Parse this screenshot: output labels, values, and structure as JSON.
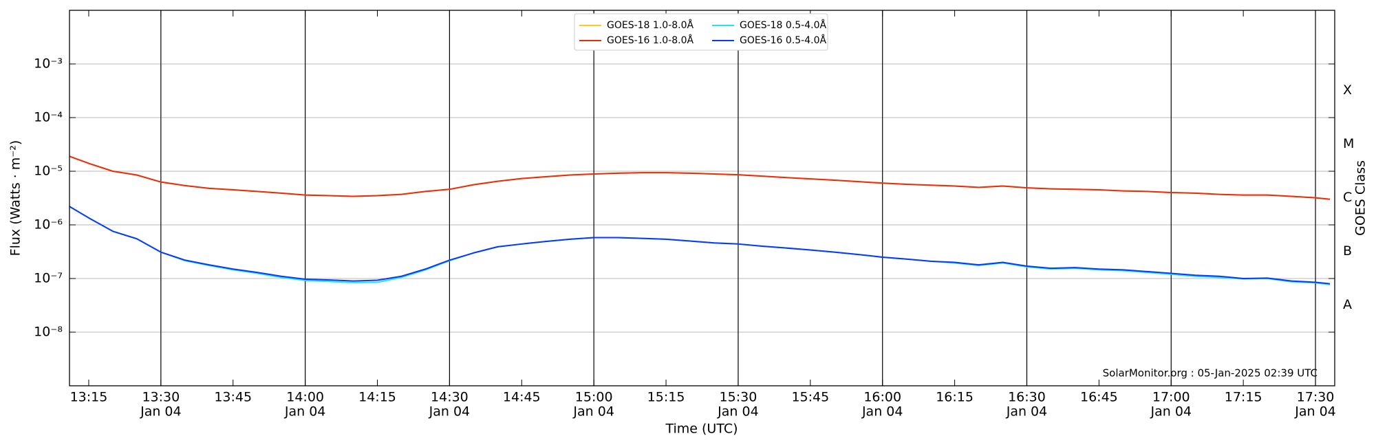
{
  "chart_data": {
    "type": "line",
    "xlabel": "Time (UTC)",
    "ylabel": "Flux (Watts · m⁻²)",
    "y2label": "GOES Class",
    "watermark": "SolarMonitor.org : 05-Jan-2025 02:39 UTC",
    "yscale": "log",
    "grid": true,
    "legend": "upper center",
    "x": [
      "13:11",
      "13:15",
      "13:20",
      "13:25",
      "13:30",
      "13:35",
      "13:40",
      "13:45",
      "13:50",
      "13:55",
      "14:00",
      "14:05",
      "14:10",
      "14:15",
      "14:20",
      "14:25",
      "14:30",
      "14:35",
      "14:40",
      "14:45",
      "14:50",
      "14:55",
      "15:00",
      "15:05",
      "15:10",
      "15:15",
      "15:20",
      "15:25",
      "15:30",
      "15:35",
      "15:40",
      "15:45",
      "15:50",
      "15:55",
      "16:00",
      "16:05",
      "16:10",
      "16:15",
      "16:20",
      "16:25",
      "16:30",
      "16:35",
      "16:40",
      "16:45",
      "16:50",
      "16:55",
      "17:00",
      "17:05",
      "17:10",
      "17:15",
      "17:20",
      "17:25",
      "17:30",
      "17:33"
    ],
    "xlim": [
      "13:11",
      "17:34"
    ],
    "xticks": [
      "13:15",
      "13:30",
      "13:45",
      "14:00",
      "14:15",
      "14:30",
      "14:45",
      "15:00",
      "15:15",
      "15:30",
      "15:45",
      "16:00",
      "16:15",
      "16:30",
      "16:45",
      "17:00",
      "17:15",
      "17:30"
    ],
    "xtick_sublabels": [
      null,
      "Jan 04",
      null,
      "Jan 04",
      null,
      "Jan 04",
      null,
      "Jan 04",
      null,
      "Jan 04",
      null,
      "Jan 04",
      null,
      "Jan 04",
      null,
      "Jan 04",
      null,
      "Jan 04"
    ],
    "ylim": [
      1e-09,
      0.01
    ],
    "yticks": [
      {
        "value": 1e-08,
        "label": "10⁻⁸"
      },
      {
        "value": 1e-07,
        "label": "10⁻⁷"
      },
      {
        "value": 1e-06,
        "label": "10⁻⁶"
      },
      {
        "value": 1e-05,
        "label": "10⁻⁵"
      },
      {
        "value": 0.0001,
        "label": "10⁻⁴"
      },
      {
        "value": 0.001,
        "label": "10⁻³"
      }
    ],
    "y2lim": [
      1e-09,
      0.01
    ],
    "y2ticks": [
      {
        "value": 3.2e-08,
        "label": "A"
      },
      {
        "value": 3.2e-07,
        "label": "B"
      },
      {
        "value": 3.2e-06,
        "label": "C"
      },
      {
        "value": 3.2e-05,
        "label": "M"
      },
      {
        "value": 0.00032,
        "label": "X"
      }
    ],
    "series": [
      {
        "name": "GOES-18 1.0-8.0Å",
        "color": "#ffc81e",
        "values": [
          1.9e-05,
          1.4e-05,
          1e-05,
          8.5e-06,
          6.3e-06,
          5.4e-06,
          4.8e-06,
          4.5e-06,
          4.2e-06,
          3.9e-06,
          3.6e-06,
          3.5e-06,
          3.4e-06,
          3.5e-06,
          3.7e-06,
          4.2e-06,
          4.6e-06,
          5.6e-06,
          6.5e-06,
          7.3e-06,
          7.9e-06,
          8.5e-06,
          8.9e-06,
          9.2e-06,
          9.4e-06,
          9.4e-06,
          9.2e-06,
          8.9e-06,
          8.6e-06,
          8.1e-06,
          7.6e-06,
          7.2e-06,
          6.8e-06,
          6.4e-06,
          6e-06,
          5.7e-06,
          5.5e-06,
          5.3e-06,
          5e-06,
          5.3e-06,
          4.9e-06,
          4.7e-06,
          4.6e-06,
          4.5e-06,
          4.3e-06,
          4.2e-06,
          4e-06,
          3.9e-06,
          3.7e-06,
          3.6e-06,
          3.6e-06,
          3.4e-06,
          3.2e-06,
          3e-06
        ]
      },
      {
        "name": "GOES-16 1.0-8.0Å",
        "color": "#ee2a0c",
        "values": [
          1.9e-05,
          1.4e-05,
          1e-05,
          8.5e-06,
          6.3e-06,
          5.4e-06,
          4.8e-06,
          4.5e-06,
          4.2e-06,
          3.9e-06,
          3.6e-06,
          3.5e-06,
          3.4e-06,
          3.5e-06,
          3.7e-06,
          4.2e-06,
          4.6e-06,
          5.6e-06,
          6.5e-06,
          7.3e-06,
          7.9e-06,
          8.5e-06,
          8.9e-06,
          9.2e-06,
          9.4e-06,
          9.4e-06,
          9.2e-06,
          8.9e-06,
          8.6e-06,
          8.1e-06,
          7.6e-06,
          7.2e-06,
          6.8e-06,
          6.4e-06,
          6e-06,
          5.7e-06,
          5.5e-06,
          5.3e-06,
          5e-06,
          5.3e-06,
          4.9e-06,
          4.7e-06,
          4.6e-06,
          4.5e-06,
          4.3e-06,
          4.2e-06,
          4e-06,
          3.9e-06,
          3.7e-06,
          3.6e-06,
          3.6e-06,
          3.4e-06,
          3.2e-06,
          3e-06
        ]
      },
      {
        "name": "GOES-18 0.5-4.0Å",
        "color": "#1ee6f0",
        "values": [
          2.2e-06,
          1.35e-06,
          7.6e-07,
          5.5e-07,
          3.1e-07,
          2.15e-07,
          1.75e-07,
          1.45e-07,
          1.25e-07,
          1.05e-07,
          9.2e-08,
          8.8e-08,
          8.4e-08,
          8.5e-08,
          1.05e-07,
          1.45e-07,
          2.15e-07,
          3e-07,
          3.9e-07,
          4.4e-07,
          4.9e-07,
          5.4e-07,
          5.8e-07,
          5.8e-07,
          5.6e-07,
          5.4e-07,
          5e-07,
          4.6e-07,
          4.4e-07,
          4e-07,
          3.7e-07,
          3.4e-07,
          3.1e-07,
          2.8e-07,
          2.5e-07,
          2.3e-07,
          2.1e-07,
          1.95e-07,
          1.75e-07,
          1.95e-07,
          1.65e-07,
          1.5e-07,
          1.55e-07,
          1.45e-07,
          1.4e-07,
          1.3e-07,
          1.2e-07,
          1.1e-07,
          1.05e-07,
          9.8e-08,
          1e-07,
          8.7e-08,
          8.3e-08,
          7.7e-08
        ]
      },
      {
        "name": "GOES-16 0.5-4.0Å",
        "color": "#0a37ff",
        "values": [
          2.2e-06,
          1.35e-06,
          7.6e-07,
          5.5e-07,
          3.1e-07,
          2.2e-07,
          1.8e-07,
          1.5e-07,
          1.3e-07,
          1.1e-07,
          9.7e-08,
          9.4e-08,
          9e-08,
          9.3e-08,
          1.1e-07,
          1.5e-07,
          2.2e-07,
          3e-07,
          3.9e-07,
          4.4e-07,
          4.9e-07,
          5.4e-07,
          5.8e-07,
          5.8e-07,
          5.6e-07,
          5.4e-07,
          5e-07,
          4.6e-07,
          4.4e-07,
          4e-07,
          3.7e-07,
          3.4e-07,
          3.1e-07,
          2.8e-07,
          2.5e-07,
          2.3e-07,
          2.1e-07,
          2e-07,
          1.8e-07,
          2e-07,
          1.7e-07,
          1.55e-07,
          1.6e-07,
          1.5e-07,
          1.45e-07,
          1.35e-07,
          1.25e-07,
          1.15e-07,
          1.1e-07,
          1e-07,
          1.02e-07,
          9e-08,
          8.5e-08,
          8e-08
        ]
      }
    ]
  }
}
